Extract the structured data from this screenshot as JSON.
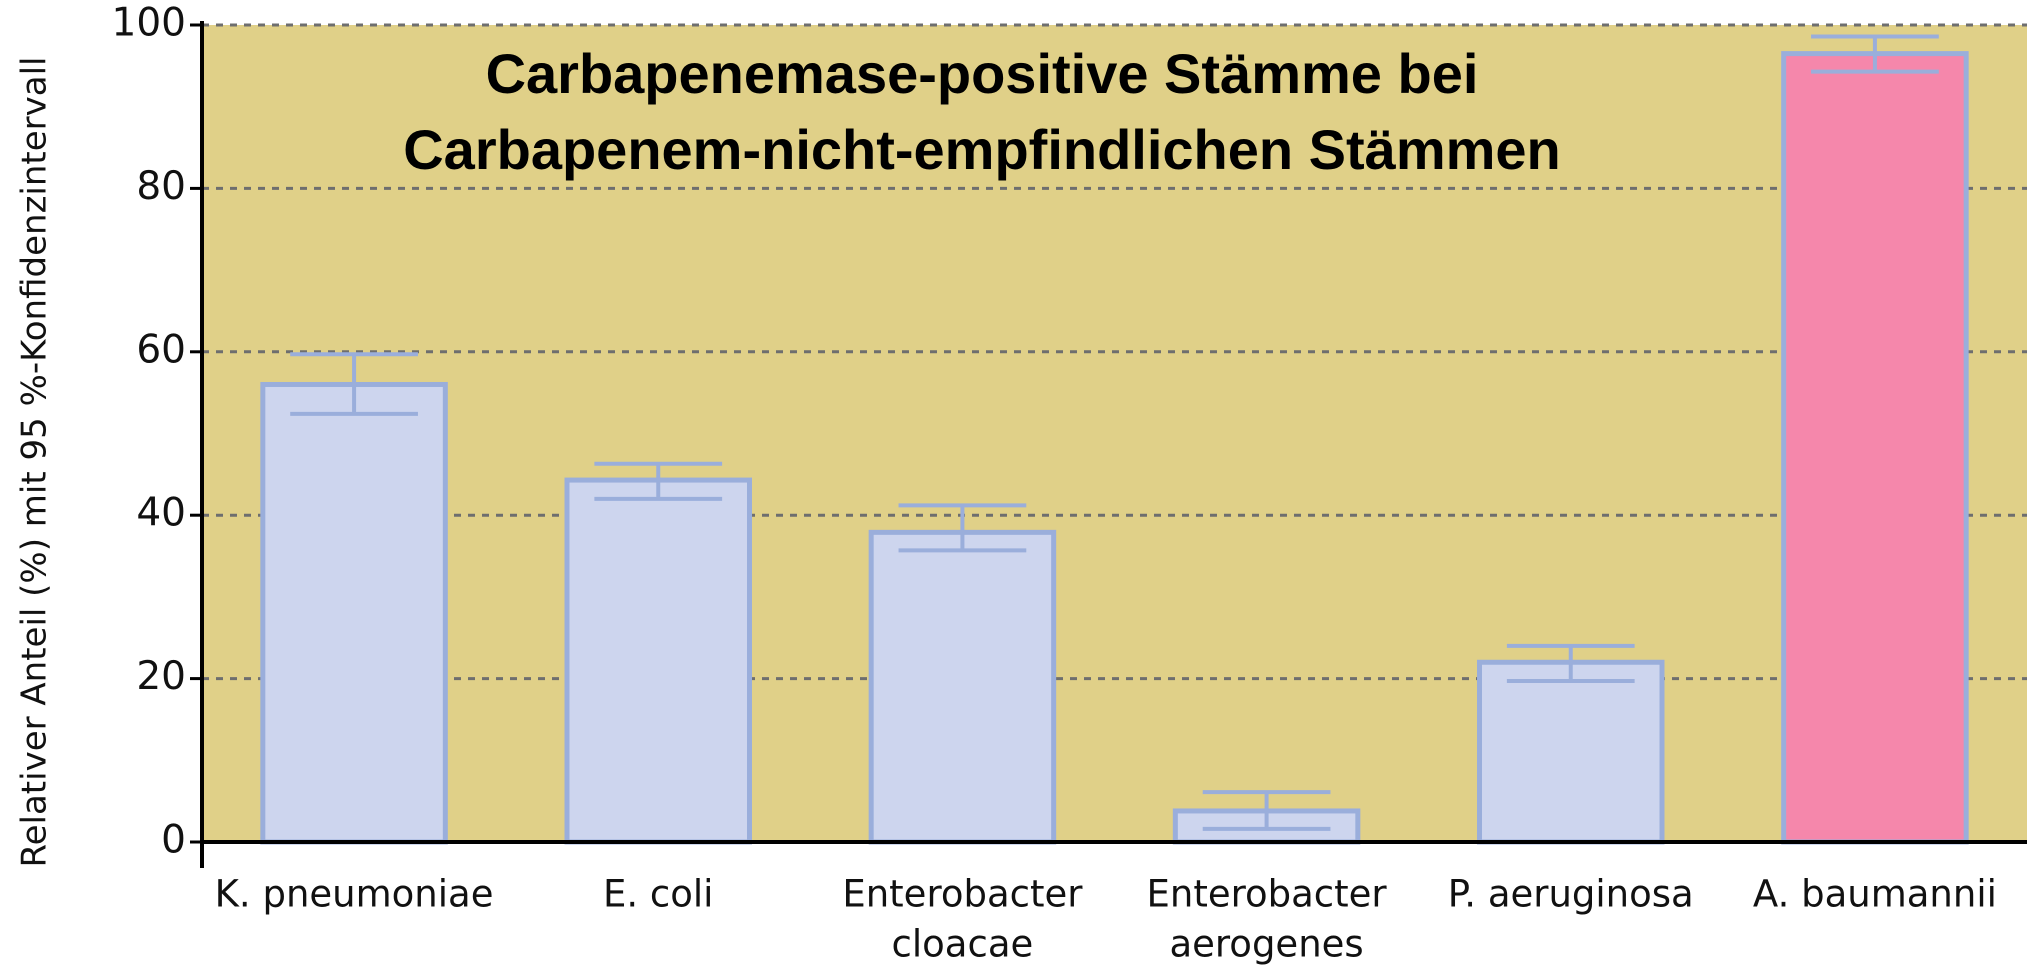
{
  "chart_data": {
    "type": "bar",
    "title": [
      "Carbapenemase-positive Stämme bei",
      "Carbapenem-nicht-empfindlichen Stämmen"
    ],
    "y_label": "Relativer Anteil (%) mit 95 %-Konfidenzintervall",
    "categories": [
      [
        "K. pneumoniae"
      ],
      [
        "E. coli"
      ],
      [
        "Enterobacter",
        "cloacae"
      ],
      [
        "Enterobacter",
        "aerogenes"
      ],
      [
        "P. aeruginosa"
      ],
      [
        "A. baumannii"
      ]
    ],
    "values": [
      56,
      44.3,
      37.9,
      3.8,
      22,
      96.5
    ],
    "ci_lower": [
      52.4,
      42,
      35.7,
      1.6,
      19.7,
      94.3
    ],
    "ci_upper": [
      59.7,
      46.3,
      41.2,
      6.1,
      24,
      98.6
    ],
    "colors": [
      "#cdd5ee",
      "#cdd5ee",
      "#cdd5ee",
      "#cdd5ee",
      "#cdd5ee",
      "#f587ab"
    ],
    "ylim": [
      0,
      100
    ],
    "yticks": [
      0,
      20,
      40,
      60,
      80,
      100
    ],
    "grid": true
  }
}
